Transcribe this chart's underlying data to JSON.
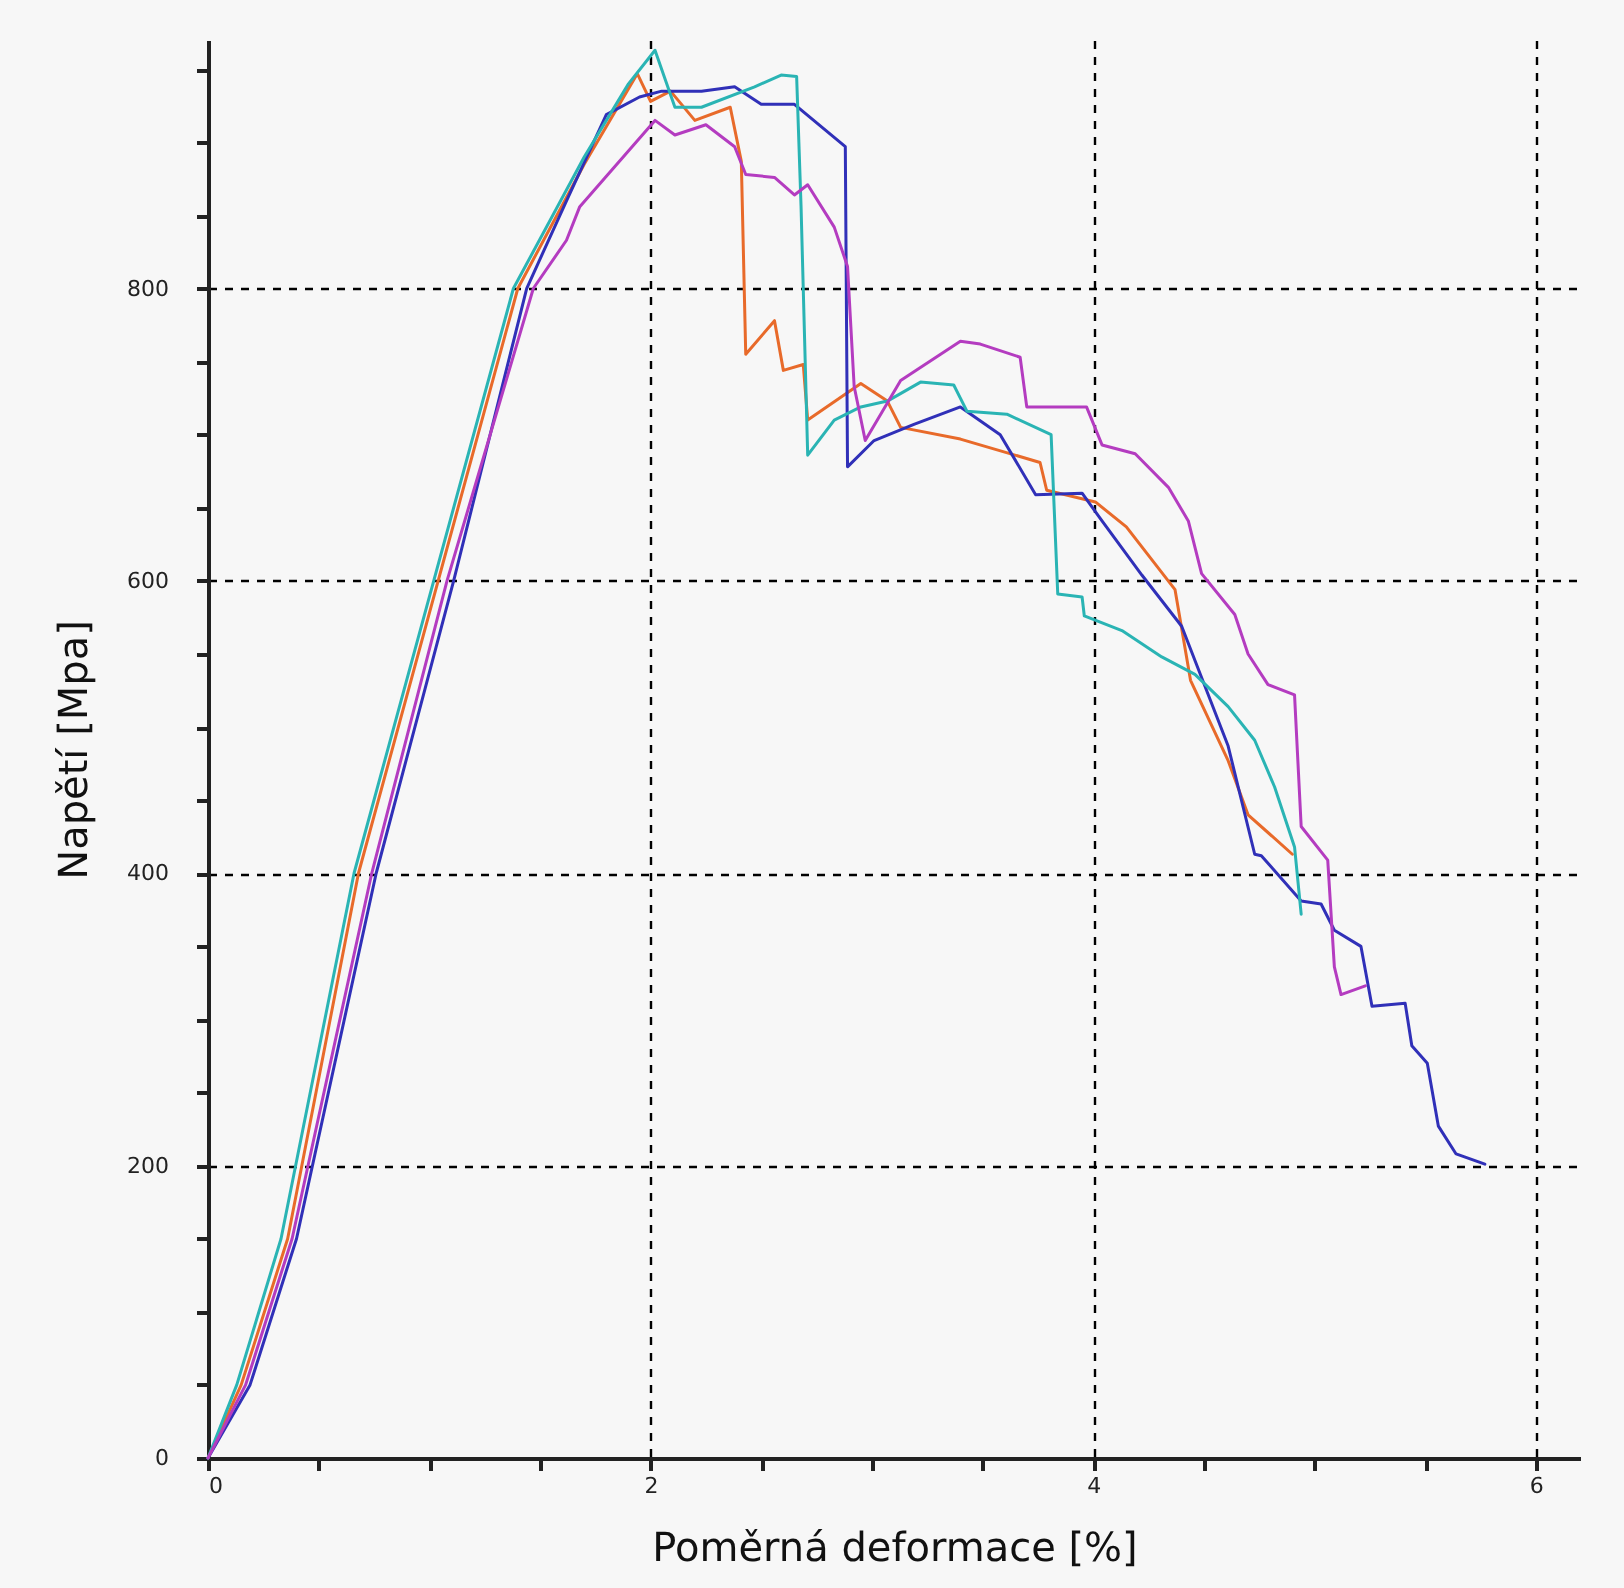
{
  "chart_data": {
    "type": "line",
    "xlabel": "Poměrná deformace [%]",
    "ylabel": "Napětí [Mpa]",
    "xlim": [
      0,
      6.2
    ],
    "ylim": [
      0,
      970
    ],
    "xticks": [
      0,
      {
        "value": 0.5,
        "label": null
      },
      {
        "value": 1,
        "label": null
      },
      {
        "value": 1.5,
        "label": null
      },
      2,
      {
        "value": 2.5,
        "label": null
      },
      {
        "value": 3,
        "label": null
      },
      {
        "value": 3.5,
        "label": null
      },
      4,
      {
        "value": 4.5,
        "label": null
      },
      {
        "value": 5,
        "label": null
      },
      {
        "value": 5.5,
        "label": null
      },
      6
    ],
    "yticks": [
      0,
      {
        "value": 50,
        "label": null
      },
      {
        "value": 100,
        "label": null
      },
      {
        "value": 150,
        "label": null
      },
      200,
      {
        "value": 250,
        "label": null
      },
      {
        "value": 300,
        "label": null
      },
      {
        "value": 350,
        "label": null
      },
      400,
      {
        "value": 450,
        "label": null
      },
      {
        "value": 500,
        "label": null
      },
      {
        "value": 550,
        "label": null
      },
      600,
      {
        "value": 650,
        "label": null
      },
      {
        "value": 700,
        "label": null
      },
      {
        "value": 750,
        "label": null
      },
      800,
      {
        "value": 850,
        "label": null
      },
      {
        "value": 900,
        "label": null
      },
      {
        "value": 950,
        "label": null
      }
    ],
    "grid": true,
    "line_style": "solid",
    "marker": "none",
    "series": [
      {
        "color": "#e86a2a",
        "x": [
          0,
          0.15,
          0.36,
          0.68,
          1.04,
          1.4,
          1.7,
          1.94,
          2.0,
          2.09,
          2.2,
          2.36,
          2.41,
          2.43,
          2.56,
          2.6,
          2.69,
          2.71,
          2.95,
          3.07,
          3.13,
          3.4,
          3.76,
          3.79,
          4.01,
          4.15,
          4.37,
          4.44,
          4.61,
          4.7,
          4.9
        ],
        "values": [
          0,
          50,
          150,
          400,
          600,
          800,
          885,
          947,
          928,
          935,
          915,
          924,
          887,
          755,
          778,
          744,
          748,
          710,
          735,
          723,
          705,
          697,
          681,
          662,
          654,
          637,
          594,
          532,
          477,
          440,
          413
        ]
      },
      {
        "color": "#3030b8",
        "x": [
          0,
          0.19,
          0.4,
          0.76,
          1.11,
          1.44,
          1.62,
          1.8,
          1.95,
          2.05,
          2.23,
          2.38,
          2.5,
          2.65,
          2.88,
          2.89,
          3.01,
          3.19,
          3.4,
          3.58,
          3.74,
          3.95,
          4.04,
          4.22,
          4.4,
          4.61,
          4.73,
          4.76,
          4.94,
          5.03,
          5.09,
          5.21,
          5.26,
          5.41,
          5.44,
          5.51,
          5.56,
          5.64,
          5.77
        ],
        "values": [
          0,
          50,
          150,
          400,
          600,
          800,
          860,
          919,
          931,
          935,
          935,
          938,
          926,
          926,
          897,
          678,
          696,
          707,
          719,
          700,
          659,
          660,
          641,
          604,
          569,
          487,
          413,
          412,
          381,
          379,
          361,
          350,
          309,
          311,
          282,
          270,
          227,
          208,
          201
        ]
      },
      {
        "color": "#2ab4b4",
        "x": [
          0,
          0.13,
          0.33,
          0.66,
          1.02,
          1.38,
          1.7,
          1.9,
          2.02,
          2.11,
          2.23,
          2.47,
          2.59,
          2.66,
          2.68,
          2.71,
          2.83,
          2.95,
          3.07,
          3.22,
          3.37,
          3.43,
          3.61,
          3.81,
          3.84,
          3.95,
          3.96,
          4.13,
          4.31,
          4.46,
          4.61,
          4.73,
          4.82,
          4.91,
          4.94
        ],
        "values": [
          0,
          50,
          150,
          400,
          600,
          800,
          890,
          940,
          963,
          924,
          924,
          938,
          946,
          945,
          856,
          686,
          710,
          719,
          723,
          736,
          734,
          716,
          714,
          700,
          591,
          589,
          576,
          566,
          548,
          536,
          514,
          491,
          459,
          418,
          372
        ]
      },
      {
        "color": "#b43cc0",
        "x": [
          0,
          0.17,
          0.38,
          0.74,
          1.08,
          1.47,
          1.62,
          1.68,
          2.02,
          2.11,
          2.25,
          2.38,
          2.43,
          2.56,
          2.65,
          2.71,
          2.83,
          2.89,
          2.92,
          2.97,
          3.13,
          3.4,
          3.49,
          3.67,
          3.7,
          3.97,
          4.04,
          4.19,
          4.34,
          4.43,
          4.49,
          4.64,
          4.7,
          4.79,
          4.91,
          4.94,
          5.06,
          5.09,
          5.12,
          5.23
        ],
        "values": [
          0,
          50,
          150,
          400,
          600,
          800,
          833,
          856,
          915,
          905,
          912,
          897,
          878,
          876,
          864,
          871,
          842,
          815,
          733,
          696,
          737,
          764,
          762,
          753,
          719,
          719,
          693,
          687,
          664,
          641,
          605,
          577,
          550,
          529,
          522,
          432,
          409,
          336,
          317,
          323
        ]
      }
    ]
  }
}
